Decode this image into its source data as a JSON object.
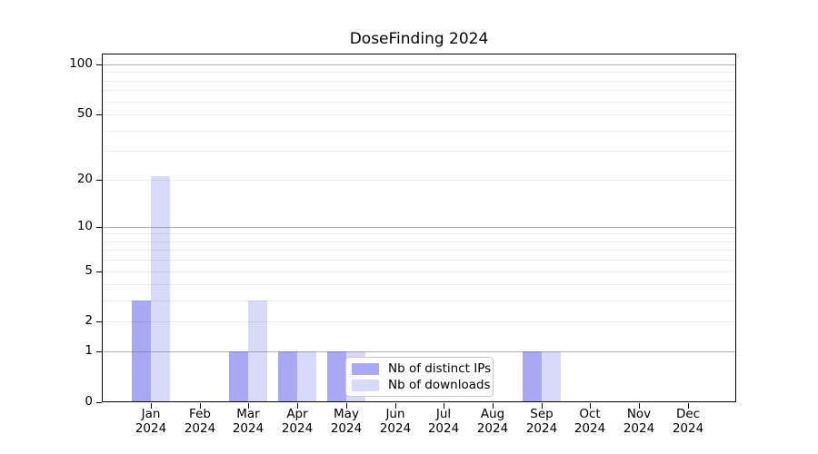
{
  "chart_data": {
    "type": "bar",
    "title": "DoseFinding 2024",
    "categories": [
      "Jan",
      "Feb",
      "Mar",
      "Apr",
      "May",
      "Jun",
      "Jul",
      "Aug",
      "Sep",
      "Oct",
      "Nov",
      "Dec"
    ],
    "category_year": "2024",
    "series": [
      {
        "name": "Nb of distinct IPs",
        "color": "#a8a8f3",
        "values": [
          3,
          0,
          1,
          1,
          1,
          0,
          0,
          0,
          1,
          0,
          0,
          0
        ]
      },
      {
        "name": "Nb of downloads",
        "color": "#d9d9f8",
        "values": [
          21,
          0,
          3,
          1,
          1,
          0,
          0,
          0,
          1,
          0,
          0,
          0
        ]
      }
    ],
    "xlabel": "",
    "ylabel": "",
    "yscale": "log1p",
    "ylim": [
      0,
      116
    ],
    "yticks": [
      0,
      1,
      2,
      5,
      10,
      20,
      50,
      100
    ],
    "grid": {
      "major_lines": [
        1,
        10,
        100
      ],
      "minor_lines": [
        2,
        3,
        4,
        5,
        6,
        7,
        8,
        9,
        20,
        30,
        40,
        50,
        60,
        70,
        80,
        90
      ]
    },
    "legend_position": "lower center-left inside plot"
  }
}
